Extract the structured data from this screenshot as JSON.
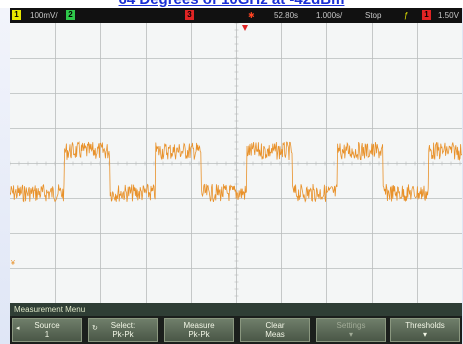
{
  "caption": "64 Degrees of 10GHz at -42dBm",
  "status": {
    "channel1_number": "1",
    "channel1_scale": "100mV/",
    "channel2_number": "2",
    "channel3_number": "3",
    "time_offset": "52.80s",
    "time_scale": "1.000s/",
    "run_state": "Stop",
    "trigger_icon": "trigger-edge-icon",
    "trigger_channel": "1",
    "trigger_level": "1.50V"
  },
  "menu": {
    "title": "Measurement Menu",
    "softkeys": [
      {
        "line1": "Source",
        "line2": "1",
        "enabled": true
      },
      {
        "line1": "Select:",
        "line2": "Pk-Pk",
        "enabled": true
      },
      {
        "line1": "Measure",
        "line2": "Pk-Pk",
        "enabled": true
      },
      {
        "line1": "Clear",
        "line2": "Meas",
        "enabled": true
      },
      {
        "line1": "Settings",
        "line2": "",
        "enabled": false
      },
      {
        "line1": "Thresholds",
        "line2": "",
        "enabled": true
      }
    ]
  },
  "colors": {
    "trace": "#e8912a",
    "grid": "#b9bdbd",
    "screen_bg": "#f4f6f6",
    "menu_bar": "#2f3e35"
  }
}
